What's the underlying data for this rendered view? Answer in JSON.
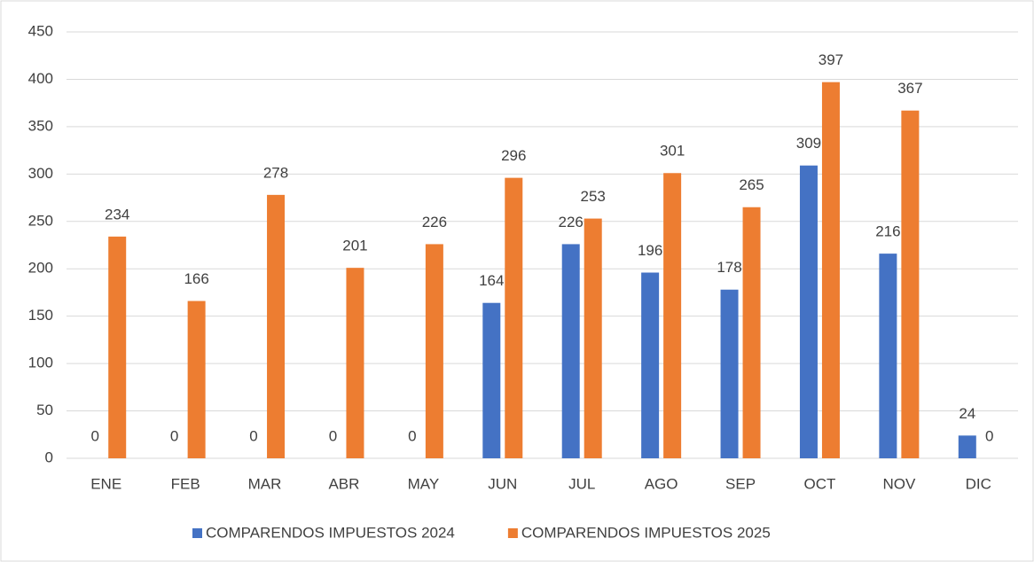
{
  "chart_data": {
    "type": "bar",
    "categories": [
      "ENE",
      "FEB",
      "MAR",
      "ABR",
      "MAY",
      "JUN",
      "JUL",
      "AGO",
      "SEP",
      "OCT",
      "NOV",
      "DIC"
    ],
    "series": [
      {
        "name": "COMPARENDOS IMPUESTOS 2024",
        "color": "#4472c4",
        "values": [
          0,
          0,
          0,
          0,
          0,
          164,
          226,
          196,
          178,
          309,
          216,
          24
        ]
      },
      {
        "name": "COMPARENDOS IMPUESTOS 2025",
        "color": "#ed7d31",
        "values": [
          234,
          166,
          278,
          201,
          226,
          296,
          253,
          301,
          265,
          397,
          367,
          0
        ]
      }
    ],
    "ylim": [
      0,
      450
    ],
    "yticks": [
      0,
      50,
      100,
      150,
      200,
      250,
      300,
      350,
      400,
      450
    ],
    "grid": true,
    "legend": "bottom",
    "data_labels": true
  }
}
